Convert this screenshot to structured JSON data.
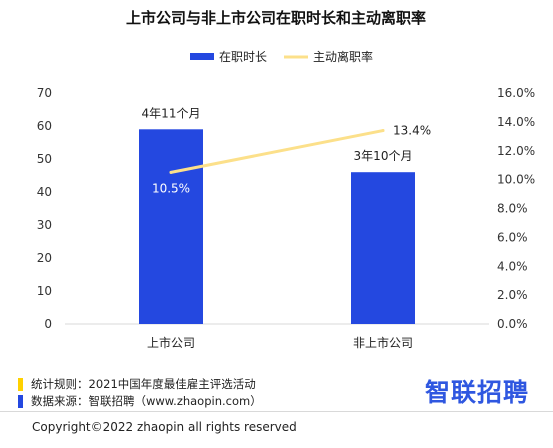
{
  "chart_data": {
    "type": "bar",
    "title": "上市公司与非上市公司在职时长和主动离职率",
    "categories": [
      "上市公司",
      "非上市公司"
    ],
    "series": [
      {
        "name": "在职时长",
        "type": "bar",
        "axis": "left",
        "color": "#2448e0",
        "values": [
          59,
          46
        ],
        "labels": [
          "4年11个月",
          "3年10个月"
        ]
      },
      {
        "name": "主动离职率",
        "type": "line",
        "axis": "right",
        "color": "#fce08a",
        "values": [
          0.105,
          0.134
        ],
        "labels": [
          "10.5%",
          "13.4%"
        ]
      }
    ],
    "y_left": {
      "min": 0,
      "max": 70,
      "ticks": [
        "0",
        "10",
        "20",
        "30",
        "40",
        "50",
        "60",
        "70"
      ]
    },
    "y_right": {
      "min": 0,
      "max": 0.16,
      "ticks": [
        "0.0%",
        "2.0%",
        "4.0%",
        "6.0%",
        "8.0%",
        "10.0%",
        "12.0%",
        "14.0%",
        "16.0%"
      ]
    },
    "legend_position": "top-right",
    "grid": false
  },
  "notes": {
    "rules": "统计规则：2021中国年度最佳雇主评选活动",
    "source": "数据来源：智联招聘（www.zhaopin.com）",
    "rules_color": "#ffd100",
    "source_color": "#2448e0"
  },
  "logo": {
    "text": "智联招聘",
    "color": "#2f57e0"
  },
  "copyright": "Copyright©2022 zhaopin all rights reserved"
}
